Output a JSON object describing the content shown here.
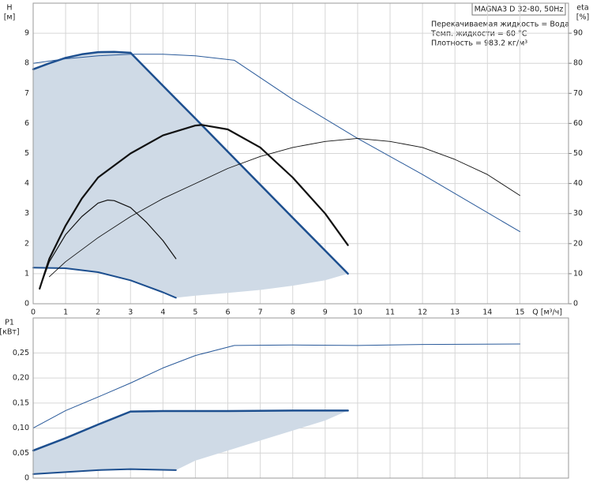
{
  "info": {
    "box": "MAGNA3 D 32-80, 50Hz",
    "lines": [
      "Перекачиваемая жидкость = Вода",
      "Темп. жидкости = 60 °C",
      "Плотность = 983.2 кг/м³"
    ]
  },
  "chart_data": [
    {
      "type": "line",
      "ylabel": "H",
      "yunit": "[м]",
      "y2label": "eta",
      "y2unit": "[%]",
      "xlabel": "Q [м³/ч]",
      "xlim": [
        0,
        16.5
      ],
      "xticks": [
        0,
        1,
        2,
        3,
        4,
        5,
        6,
        7,
        8,
        9,
        10,
        11,
        12,
        13,
        14,
        15
      ],
      "xtick_labels": true,
      "ylim": [
        0,
        10
      ],
      "yticks": [
        0,
        1,
        2,
        3,
        4,
        5,
        6,
        7,
        8,
        9
      ],
      "y2lim": [
        0,
        100
      ],
      "y2ticks": [
        0,
        10,
        20,
        30,
        40,
        50,
        60,
        70,
        80,
        90
      ],
      "grid": true,
      "area": {
        "color": "#cfdae6",
        "x": [
          0,
          0.5,
          1,
          1.5,
          2,
          2.5,
          3,
          4,
          5,
          6,
          7,
          8,
          9,
          9.7,
          9,
          8,
          7,
          6,
          5,
          4.4,
          4,
          3,
          2,
          1,
          0
        ],
        "y": [
          7.8,
          8.0,
          8.18,
          8.3,
          8.37,
          8.38,
          8.35,
          7.25,
          6.16,
          5.06,
          3.96,
          2.86,
          1.77,
          1.0,
          0.78,
          0.6,
          0.46,
          0.36,
          0.27,
          0.2,
          0.38,
          0.78,
          1.05,
          1.18,
          1.2
        ]
      },
      "series": [
        {
          "color": "#1d4f8f",
          "width": 2.5,
          "x": [
            0,
            0.5,
            1,
            1.5,
            2,
            2.5,
            3,
            4,
            5,
            6,
            7,
            8,
            9,
            9.7
          ],
          "values": [
            7.8,
            8.0,
            8.18,
            8.3,
            8.37,
            8.38,
            8.35,
            7.25,
            6.16,
            5.06,
            3.96,
            2.86,
            1.77,
            1.0
          ]
        },
        {
          "color": "#1d4f8f",
          "width": 2,
          "x": [
            0,
            1,
            2,
            3,
            4,
            4.4
          ],
          "values": [
            1.2,
            1.18,
            1.05,
            0.78,
            0.38,
            0.2
          ]
        },
        {
          "color": "#2a5a9a",
          "width": 1,
          "x": [
            0,
            1,
            2,
            3,
            4,
            5,
            6.2,
            8,
            10,
            12,
            15
          ],
          "values": [
            8.0,
            8.15,
            8.25,
            8.3,
            8.3,
            8.25,
            8.1,
            6.8,
            5.5,
            4.3,
            2.4
          ]
        },
        {
          "color": "#111111",
          "width": 0.9,
          "axis": "y2",
          "x": [
            0.5,
            1,
            2,
            3,
            4,
            5,
            6,
            7,
            8,
            9,
            10,
            11,
            12,
            13,
            14,
            15
          ],
          "values": [
            9,
            14,
            22,
            29,
            35,
            40,
            45,
            49,
            52,
            54,
            55,
            54,
            52,
            48,
            43,
            36
          ]
        },
        {
          "color": "#111111",
          "width": 2.2,
          "x": [
            0.2,
            0.5,
            1,
            1.5,
            2,
            3,
            4,
            5,
            5.2,
            6,
            7,
            8,
            9,
            9.7
          ],
          "values": [
            0.5,
            1.5,
            2.6,
            3.5,
            4.2,
            5.0,
            5.6,
            5.93,
            5.95,
            5.8,
            5.2,
            4.2,
            3.0,
            1.95
          ]
        },
        {
          "color": "#111111",
          "width": 1.2,
          "x": [
            0.3,
            0.5,
            1,
            1.5,
            2,
            2.3,
            2.5,
            3,
            3.5,
            4,
            4.4
          ],
          "values": [
            0.8,
            1.4,
            2.3,
            2.9,
            3.35,
            3.45,
            3.43,
            3.2,
            2.7,
            2.1,
            1.5
          ]
        }
      ]
    },
    {
      "type": "line",
      "ylabel": "P1",
      "yunit": "[кВт]",
      "xlim": [
        0,
        16.5
      ],
      "xticks": [
        0,
        1,
        2,
        3,
        4,
        5,
        6,
        7,
        8,
        9,
        10,
        11,
        12,
        13,
        14,
        15
      ],
      "xtick_labels": false,
      "ylim": [
        0,
        0.32
      ],
      "yticks": [
        0,
        {
          "value": 0.05,
          "label": "0,05"
        },
        {
          "value": 0.1,
          "label": "0,10"
        },
        {
          "value": 0.15,
          "label": "0,15"
        },
        {
          "value": 0.2,
          "label": "0,20"
        },
        {
          "value": 0.25,
          "label": "0,25"
        }
      ],
      "grid": true,
      "area": {
        "color": "#cfdae6",
        "x": [
          0,
          1,
          2,
          3,
          4,
          5,
          6,
          7,
          8,
          9,
          9.7,
          9,
          8,
          7,
          6,
          5,
          4.4,
          3,
          2,
          1,
          0
        ],
        "y": [
          0.055,
          0.08,
          0.107,
          0.133,
          0.134,
          0.134,
          0.134,
          0.134,
          0.135,
          0.135,
          0.135,
          0.115,
          0.095,
          0.075,
          0.055,
          0.035,
          0.016,
          0.018,
          0.016,
          0.012,
          0.008
        ]
      },
      "series": [
        {
          "color": "#1d4f8f",
          "width": 2.5,
          "x": [
            0,
            1,
            2,
            3,
            4,
            6,
            8,
            9.7
          ],
          "values": [
            0.055,
            0.08,
            0.107,
            0.133,
            0.134,
            0.134,
            0.135,
            0.135
          ]
        },
        {
          "color": "#1d4f8f",
          "width": 2,
          "x": [
            0,
            1,
            2,
            3,
            4.4
          ],
          "values": [
            0.008,
            0.012,
            0.016,
            0.018,
            0.016
          ]
        },
        {
          "color": "#2a5a9a",
          "width": 1,
          "x": [
            0,
            1,
            2,
            3,
            4,
            5,
            6.2,
            8,
            10,
            12,
            15
          ],
          "values": [
            0.1,
            0.135,
            0.162,
            0.19,
            0.22,
            0.245,
            0.265,
            0.266,
            0.265,
            0.267,
            0.268
          ]
        }
      ]
    }
  ]
}
